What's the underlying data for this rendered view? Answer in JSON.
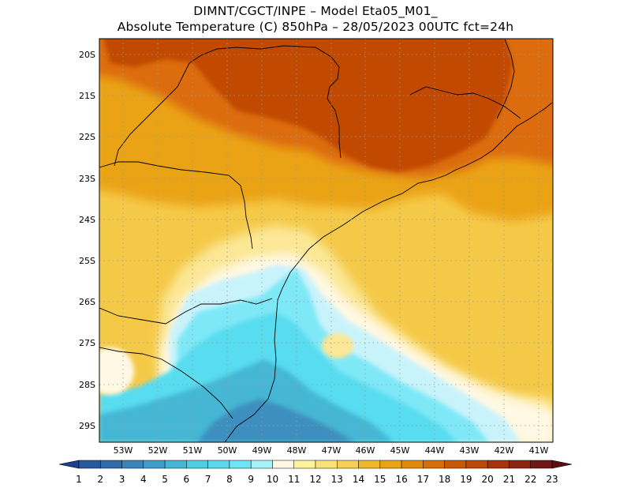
{
  "title": {
    "line1": "DIMNT/CGCT/INPE –  Model Eta05_M01_",
    "line2": "Absolute Temperature (C) 850hPa –  28/05/2023 00UTC fct=24h"
  },
  "map": {
    "lat_labels": [
      "20S",
      "21S",
      "22S",
      "23S",
      "24S",
      "25S",
      "26S",
      "27S",
      "28S",
      "29S"
    ],
    "lon_labels": [
      "53W",
      "52W",
      "51W",
      "50W",
      "49W",
      "48W",
      "47W",
      "46W",
      "45W",
      "44W",
      "43W",
      "42W",
      "41W"
    ],
    "grid": true,
    "palette": {
      "tropical_orange_dark": "#c14a06",
      "orange": "#dc6c0a",
      "gold": "#eba316",
      "yellow": "#f5c948",
      "pale_yellow": "#fbe795",
      "cream": "#fff8e3",
      "light_cyan": "#c9f3fb",
      "cyan": "#7ee8f7",
      "aqua": "#58dcef",
      "teal": "#45b7d4",
      "steel_blue": "#3d8fbf"
    }
  },
  "colorbar": {
    "labels": [
      "1",
      "2",
      "3",
      "4",
      "5",
      "6",
      "7",
      "8",
      "9",
      "10",
      "11",
      "12",
      "13",
      "14",
      "15",
      "16",
      "17",
      "18",
      "19",
      "20",
      "21",
      "22",
      "23"
    ],
    "colors": [
      "#1d3f8e",
      "#26589c",
      "#2f6aaa",
      "#3b84b9",
      "#3f9dc9",
      "#45b7d4",
      "#4fcde2",
      "#5ad8ec",
      "#6fe4f6",
      "#a5f2fb",
      "#fff6e3",
      "#fff29a",
      "#fbe275",
      "#f7cf57",
      "#f1b72a",
      "#eba316",
      "#e08a0c",
      "#d56e08",
      "#c75806",
      "#ba4905",
      "#a6330a",
      "#8c2412",
      "#6e1716",
      "#5a0e12"
    ]
  }
}
